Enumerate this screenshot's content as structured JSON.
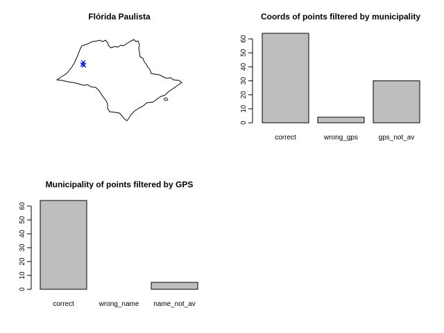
{
  "chart_data": [
    {
      "type": "map",
      "title": "Flórida Paulista",
      "region_outline": "São Paulo state",
      "points_color": "#0000cc",
      "point_marker": "x"
    },
    {
      "type": "bar",
      "title": "Coords of points filtered by municipality",
      "categories": [
        "correct",
        "wrong_gps",
        "gps_not_av"
      ],
      "values": [
        64,
        4,
        30
      ],
      "yticks": [
        "0",
        "10",
        "20",
        "30",
        "40",
        "50",
        "60"
      ],
      "ylim": [
        0,
        64
      ],
      "bar_color": "#bebebe"
    },
    {
      "type": "bar",
      "title": "Municipality of points filtered by GPS",
      "categories": [
        "correct",
        "wrong_name",
        "name_not_av"
      ],
      "values": [
        64,
        0,
        5
      ],
      "yticks": [
        "0",
        "10",
        "20",
        "30",
        "40",
        "50",
        "60"
      ],
      "ylim": [
        0,
        64
      ],
      "bar_color": "#bebebe"
    }
  ]
}
